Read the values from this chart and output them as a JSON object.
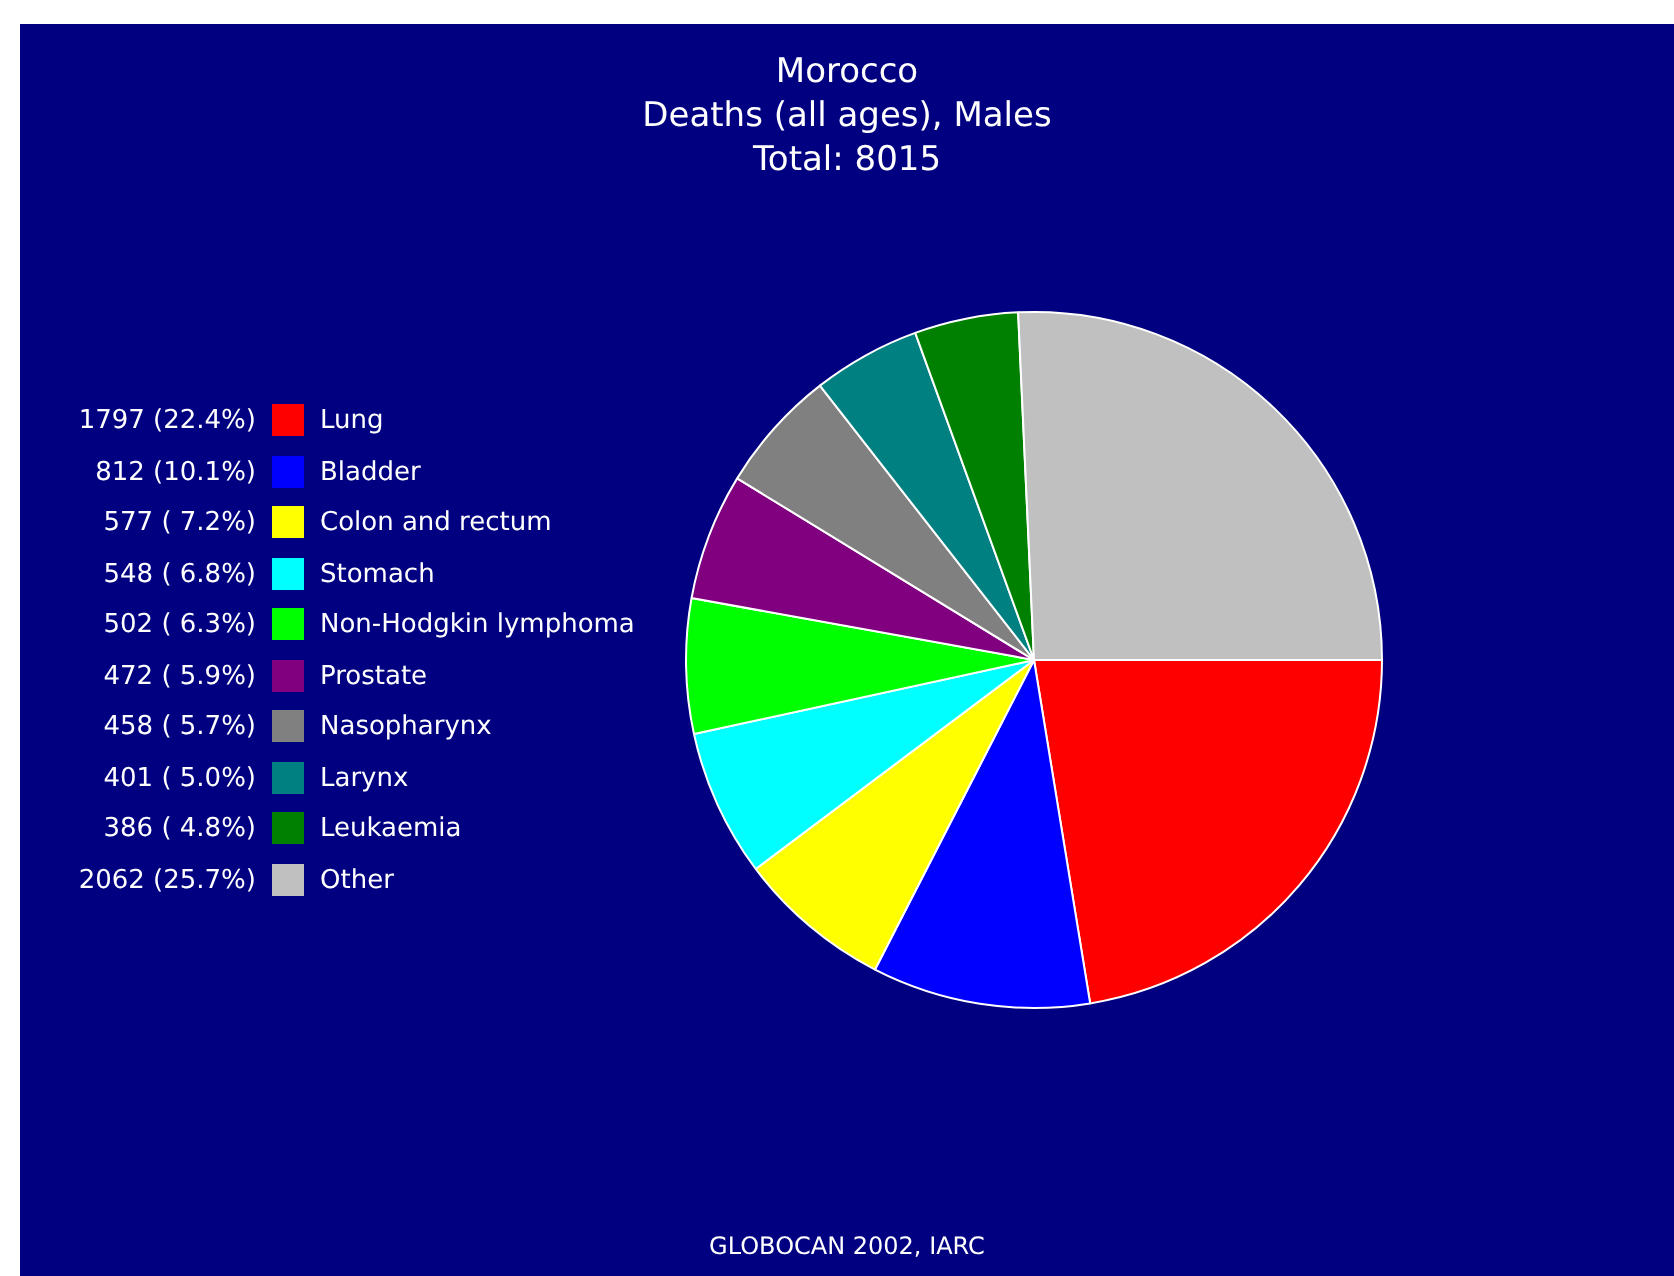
{
  "chart_data": {
    "type": "pie",
    "title": "Morocco",
    "subtitle": "Deaths (all ages), Males",
    "annotations": [
      "Total: 8015",
      "GLOBOCAN 2002, IARC"
    ],
    "categories": [
      "Lung",
      "Bladder",
      "Colon and rectum",
      "Stomach",
      "Non-Hodgkin lymphoma",
      "Prostate",
      "Nasopharynx",
      "Larynx",
      "Leukaemia",
      "Other"
    ],
    "values": [
      1797,
      812,
      577,
      548,
      502,
      472,
      458,
      401,
      386,
      2062
    ],
    "value_labels": [
      "1797 (22.4%)",
      "812 (10.1%)",
      "577 ( 7.2%)",
      "548 ( 6.8%)",
      "502 ( 6.3%)",
      "472 ( 5.9%)",
      "458 ( 5.7%)",
      "401 ( 5.0%)",
      "386 ( 4.8%)",
      "2062 (25.7%)"
    ],
    "colors": [
      "#ff0000",
      "#0000ff",
      "#ffff00",
      "#00ffff",
      "#00ff00",
      "#800080",
      "#808080",
      "#008080",
      "#008000",
      "#c0c0c0"
    ],
    "legend": "left"
  }
}
